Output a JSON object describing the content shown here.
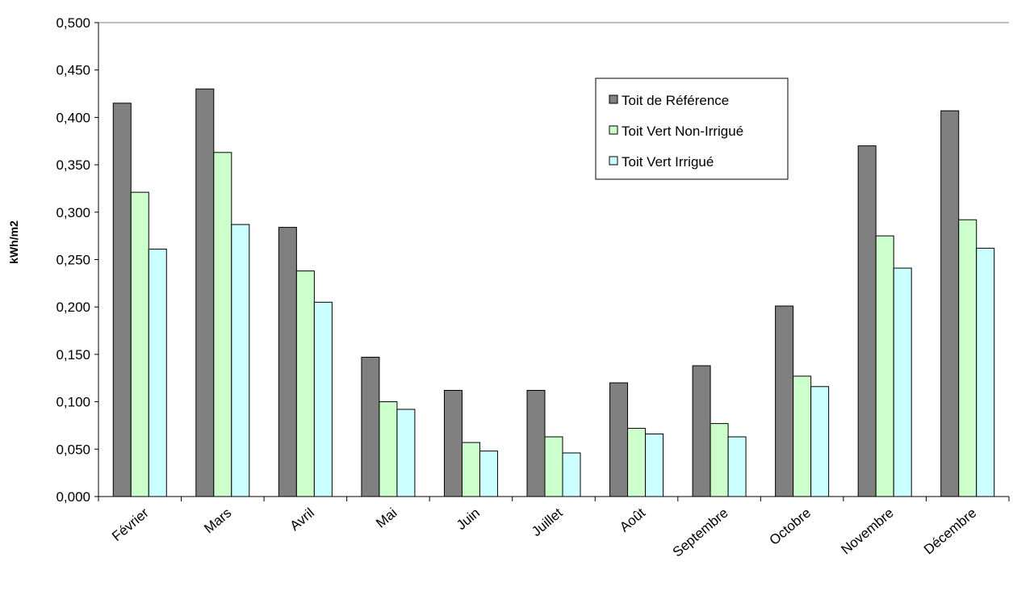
{
  "chart_data": {
    "type": "bar",
    "title": "",
    "xlabel": "",
    "ylabel": "kWh/m2",
    "ylim": [
      0,
      0.5
    ],
    "ytick_step": 0.05,
    "ytick_labels": [
      "0,000",
      "0,050",
      "0,100",
      "0,150",
      "0,200",
      "0,250",
      "0,300",
      "0,350",
      "0,400",
      "0,450",
      "0,500"
    ],
    "grid": false,
    "legend_position": "top-right",
    "categories": [
      "Février",
      "Mars",
      "Avril",
      "Mai",
      "Juin",
      "Juillet",
      "Août",
      "Septembre",
      "Octobre",
      "Novembre",
      "Décembre"
    ],
    "series": [
      {
        "name": "Toit de Référence",
        "color": "#808080",
        "values": [
          0.415,
          0.43,
          0.284,
          0.147,
          0.112,
          0.112,
          0.12,
          0.138,
          0.201,
          0.37,
          0.407
        ]
      },
      {
        "name": "Toit Vert Non-Irrigué",
        "color": "#ccffcc",
        "values": [
          0.321,
          0.363,
          0.238,
          0.1,
          0.057,
          0.063,
          0.072,
          0.077,
          0.127,
          0.275,
          0.292
        ]
      },
      {
        "name": "Toit Vert Irrigué",
        "color": "#ccffff",
        "values": [
          0.261,
          0.287,
          0.205,
          0.092,
          0.048,
          0.046,
          0.066,
          0.063,
          0.116,
          0.241,
          0.262
        ]
      }
    ]
  }
}
